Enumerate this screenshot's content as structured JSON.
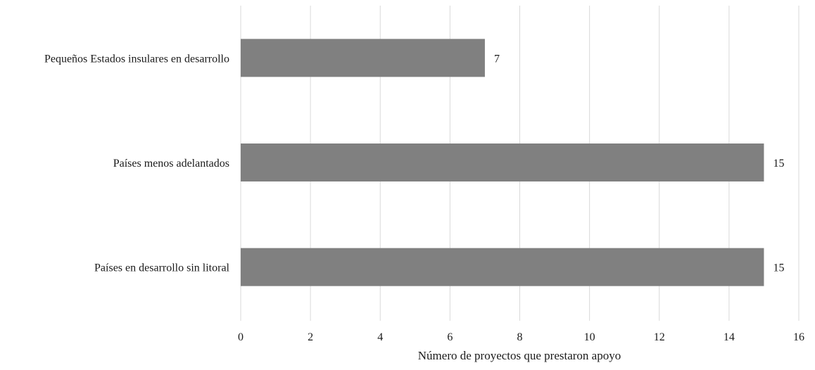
{
  "chart_data": {
    "type": "bar",
    "orientation": "horizontal",
    "categories": [
      "Pequeños Estados insulares en desarrollo",
      "Países menos adelantados",
      "Países en desarrollo sin litoral"
    ],
    "values": [
      7,
      15,
      15
    ],
    "data_labels": [
      "7",
      "15",
      "15"
    ],
    "xlabel": "Número de proyectos que prestaron apoyo",
    "ylabel": "",
    "xlim": [
      0,
      16
    ],
    "x_ticks": [
      0,
      2,
      4,
      6,
      8,
      10,
      12,
      14,
      16
    ],
    "grid": "vertical",
    "legend": "none",
    "bar_color": "#808080",
    "gridline_color": "#d9d9d9"
  }
}
